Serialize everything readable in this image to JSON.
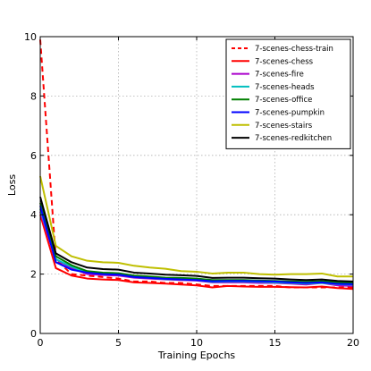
{
  "chart_data": {
    "type": "line",
    "xlabel": "Training Epochs",
    "ylabel": "Loss",
    "xlim": [
      0,
      20
    ],
    "ylim": [
      0,
      10
    ],
    "xticks": [
      "0",
      "5",
      "10",
      "15",
      "20"
    ],
    "yticks": [
      "0",
      "2",
      "4",
      "6",
      "8",
      "10"
    ],
    "grid": true,
    "legend_position": "top-right",
    "x": [
      0,
      1,
      2,
      3,
      4,
      5,
      6,
      7,
      8,
      9,
      10,
      11,
      12,
      13,
      14,
      15,
      16,
      17,
      18,
      19,
      20
    ],
    "series": [
      {
        "name": "7-scenes-chess-train",
        "color": "#ff0000",
        "dashed": true,
        "values": [
          9.9,
          2.5,
          2.0,
          1.95,
          1.9,
          1.85,
          1.75,
          1.75,
          1.7,
          1.7,
          1.65,
          1.6,
          1.6,
          1.6,
          1.6,
          1.6,
          1.55,
          1.55,
          1.55,
          1.55,
          1.55
        ]
      },
      {
        "name": "7-scenes-chess",
        "color": "#ff0000",
        "dashed": false,
        "values": [
          4.0,
          2.2,
          1.95,
          1.85,
          1.82,
          1.8,
          1.72,
          1.7,
          1.68,
          1.65,
          1.62,
          1.55,
          1.6,
          1.58,
          1.57,
          1.57,
          1.56,
          1.55,
          1.58,
          1.53,
          1.5
        ]
      },
      {
        "name": "7-scenes-fire",
        "color": "#aa00cc",
        "dashed": false,
        "values": [
          4.1,
          2.5,
          2.2,
          2.0,
          1.97,
          1.95,
          1.88,
          1.85,
          1.82,
          1.8,
          1.78,
          1.72,
          1.72,
          1.72,
          1.7,
          1.7,
          1.68,
          1.65,
          1.7,
          1.62,
          1.6
        ]
      },
      {
        "name": "7-scenes-heads",
        "color": "#00bfbf",
        "dashed": false,
        "values": [
          4.2,
          2.5,
          2.25,
          2.05,
          2.0,
          1.98,
          1.9,
          1.87,
          1.83,
          1.82,
          1.8,
          1.74,
          1.75,
          1.75,
          1.74,
          1.72,
          1.7,
          1.68,
          1.7,
          1.66,
          1.64
        ]
      },
      {
        "name": "7-scenes-office",
        "color": "#008000",
        "dashed": false,
        "values": [
          4.4,
          2.6,
          2.3,
          2.1,
          2.05,
          2.03,
          1.95,
          1.92,
          1.88,
          1.87,
          1.85,
          1.8,
          1.8,
          1.8,
          1.78,
          1.77,
          1.75,
          1.74,
          1.76,
          1.72,
          1.7
        ]
      },
      {
        "name": "7-scenes-pumpkin",
        "color": "#0000ff",
        "dashed": false,
        "values": [
          4.3,
          2.4,
          2.15,
          2.05,
          2.0,
          1.98,
          1.9,
          1.87,
          1.84,
          1.82,
          1.8,
          1.76,
          1.77,
          1.77,
          1.76,
          1.75,
          1.72,
          1.7,
          1.72,
          1.67,
          1.66
        ]
      },
      {
        "name": "7-scenes-stairs",
        "color": "#bfbf00",
        "dashed": false,
        "values": [
          5.3,
          2.95,
          2.6,
          2.45,
          2.4,
          2.38,
          2.28,
          2.22,
          2.18,
          2.1,
          2.08,
          2.02,
          2.05,
          2.05,
          2.0,
          1.98,
          2.0,
          2.0,
          2.02,
          1.92,
          1.92
        ]
      },
      {
        "name": "7-scenes-redkitchen",
        "color": "#000000",
        "dashed": false,
        "values": [
          4.6,
          2.7,
          2.4,
          2.22,
          2.17,
          2.15,
          2.05,
          2.02,
          1.98,
          1.96,
          1.94,
          1.87,
          1.88,
          1.88,
          1.86,
          1.85,
          1.82,
          1.8,
          1.82,
          1.77,
          1.75
        ]
      }
    ]
  }
}
